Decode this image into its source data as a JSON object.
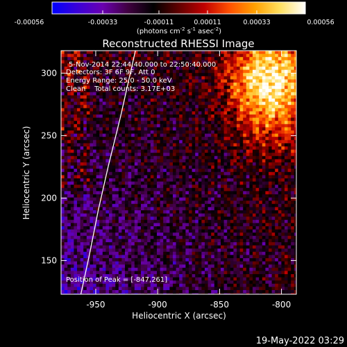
{
  "colorbar": {
    "tick_labels": [
      "-0.00056",
      "-0.00033",
      "-0.00011",
      "0.00011",
      "0.00033",
      "0.00056"
    ],
    "unit_prefix": "(photons cm",
    "unit_exp1": "-2",
    "unit_mid": " s",
    "unit_exp2": "-1",
    "unit_mid2": " asec",
    "unit_exp3": "-2",
    "unit_suffix": ")",
    "colormap": [
      "#0000ff",
      "#3a00d8",
      "#6a00b0",
      "#400040",
      "#000000",
      "#600000",
      "#c00000",
      "#ff5000",
      "#ffa000",
      "#ffe060",
      "#ffffff"
    ]
  },
  "chart_data": {
    "type": "heatmap",
    "title": "Reconstructed RHESSI Image",
    "xlabel": "Heliocentric X (arcsec)",
    "ylabel": "Heliocentric Y (arcsec)",
    "xlim": [
      -978,
      -788
    ],
    "ylim": [
      123,
      318
    ],
    "x_ticks": [
      -950,
      -900,
      -850,
      -800
    ],
    "y_ticks": [
      150,
      200,
      250,
      300
    ],
    "x_tick_labels": [
      "-950",
      "-900",
      "-850",
      "-800"
    ],
    "y_tick_labels": [
      "150",
      "200",
      "250",
      "300"
    ],
    "value_range": [
      -0.00056,
      0.00056
    ],
    "limb_curve": [
      [
        -962,
        123
      ],
      [
        -955,
        155
      ],
      [
        -948,
        190
      ],
      [
        -940,
        225
      ],
      [
        -930,
        265
      ],
      [
        -918,
        318
      ]
    ],
    "peak": [
      -847,
      261
    ],
    "annotations": {
      "time_range": "5-Nov-2014 22:44:40.000 to 22:50:40.000",
      "detectors": "Detectors: 3F 6F 9F, Att 0",
      "energy": "Energy Range: 25.0 - 50.0 keV",
      "algorithm": "Clean    Total counts: 3.17E+03",
      "peak_position": "Position of Peak = [-847,261]"
    }
  },
  "footer": {
    "timestamp": "19-May-2022 03:29"
  }
}
